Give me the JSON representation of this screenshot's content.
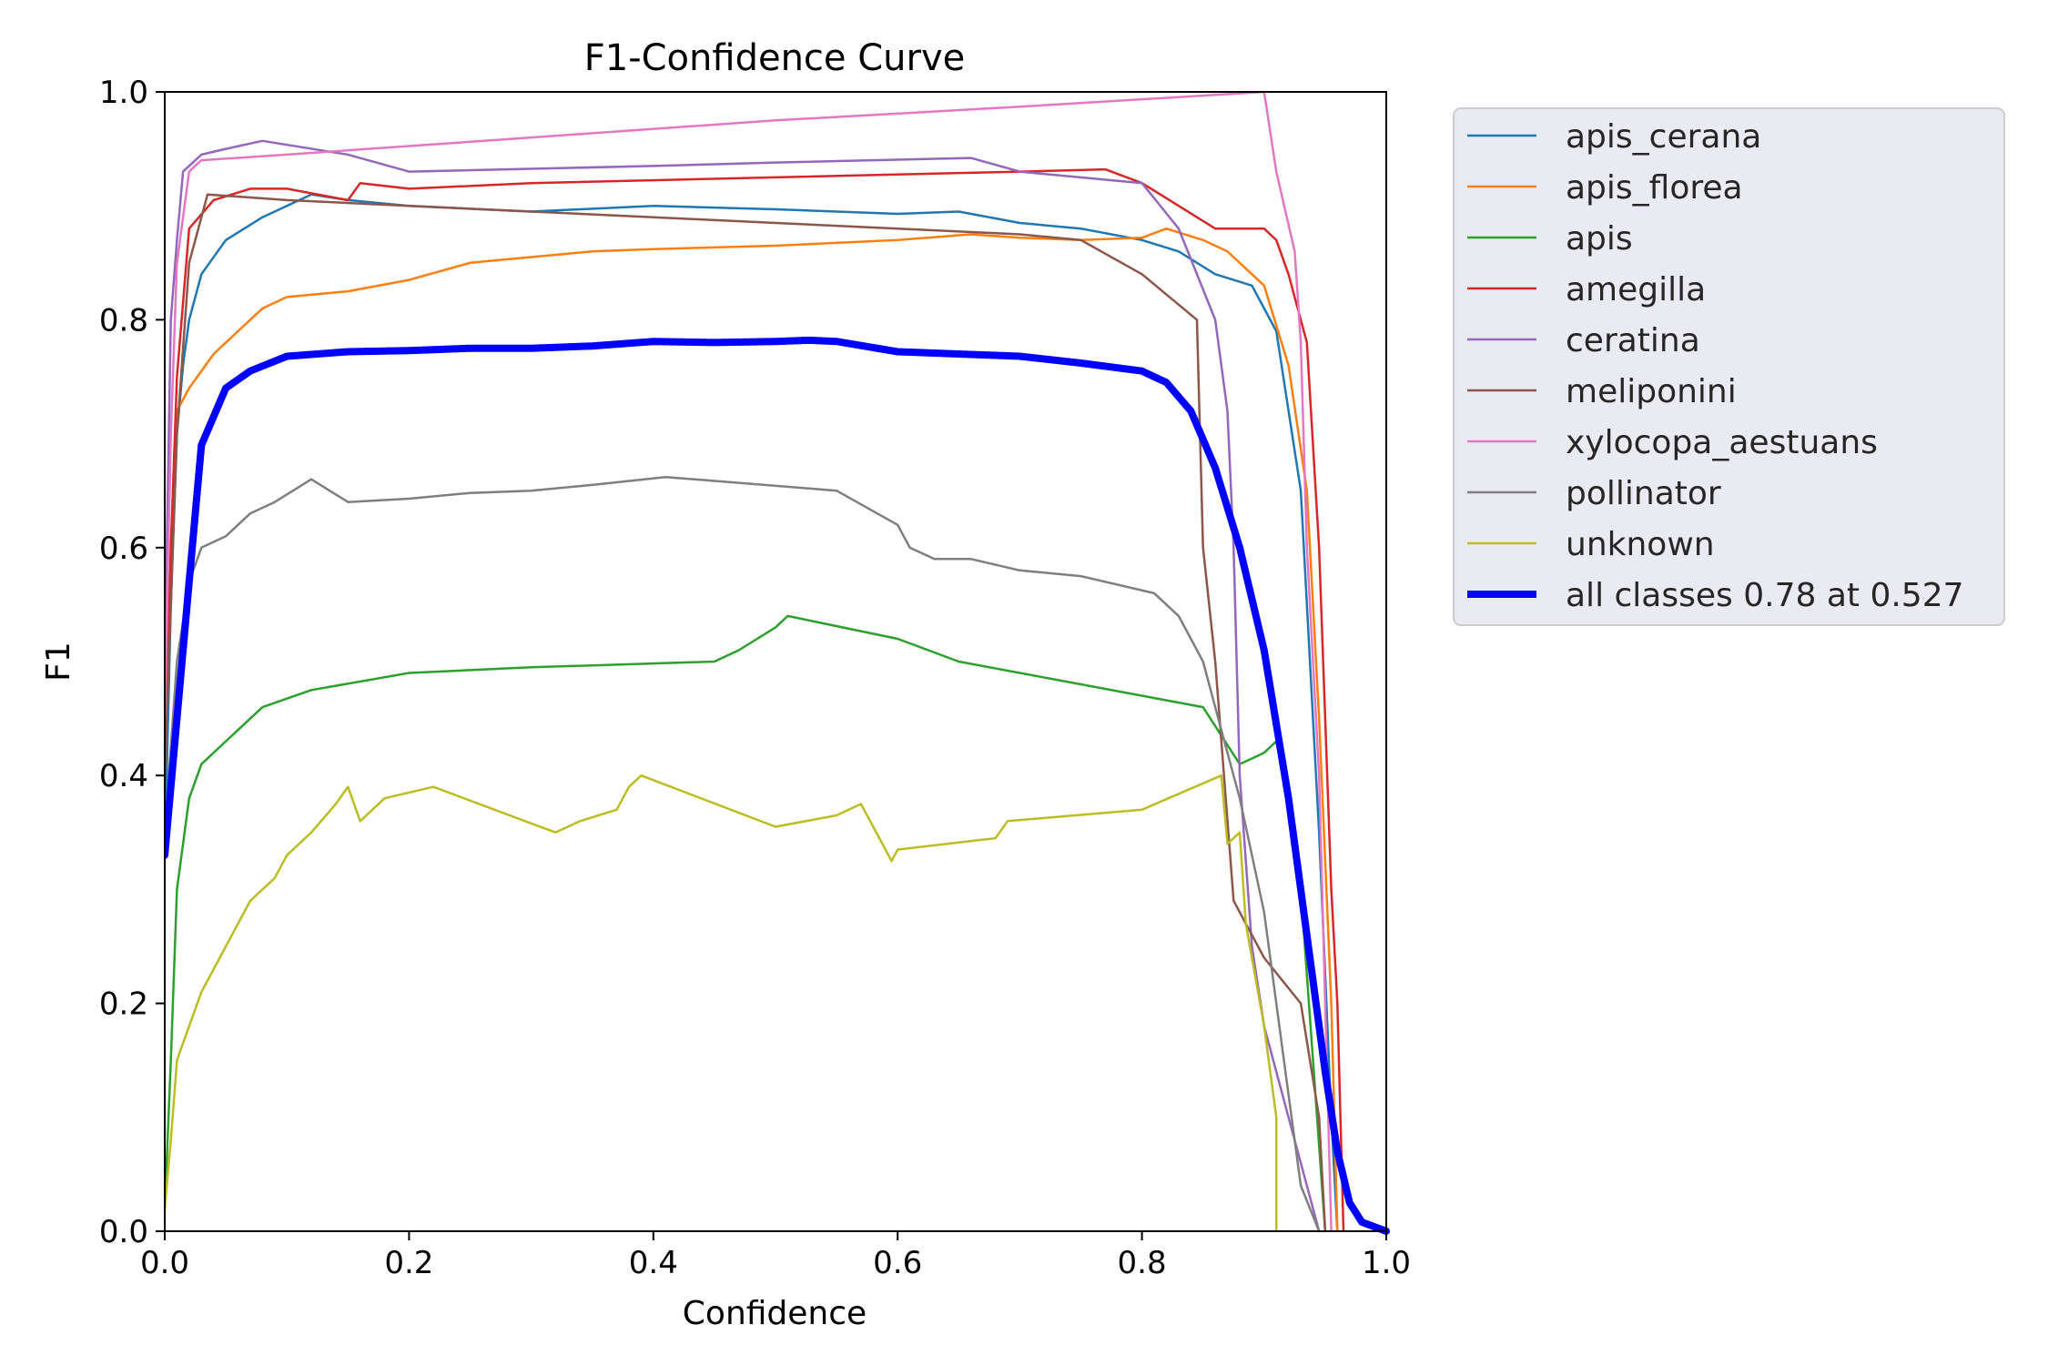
{
  "chart_data": {
    "type": "line",
    "title": "F1-Confidence Curve",
    "xlabel": "Confidence",
    "ylabel": "F1",
    "xlim": [
      0,
      1
    ],
    "ylim": [
      0,
      1
    ],
    "xticks": [
      "0.0",
      "0.2",
      "0.4",
      "0.6",
      "0.8",
      "1.0"
    ],
    "yticks": [
      "0.0",
      "0.2",
      "0.4",
      "0.6",
      "0.8",
      "1.0"
    ],
    "grid": false,
    "legend": "outside-upper-right",
    "series": [
      {
        "name": "apis_cerana",
        "color": "#1f77b4",
        "width": 2.5,
        "points": [
          [
            0,
            0.33
          ],
          [
            0.005,
            0.55
          ],
          [
            0.01,
            0.7
          ],
          [
            0.015,
            0.76
          ],
          [
            0.02,
            0.8
          ],
          [
            0.03,
            0.84
          ],
          [
            0.05,
            0.87
          ],
          [
            0.08,
            0.89
          ],
          [
            0.1,
            0.9
          ],
          [
            0.12,
            0.91
          ],
          [
            0.15,
            0.905
          ],
          [
            0.2,
            0.9
          ],
          [
            0.3,
            0.895
          ],
          [
            0.4,
            0.9
          ],
          [
            0.5,
            0.897
          ],
          [
            0.6,
            0.893
          ],
          [
            0.65,
            0.895
          ],
          [
            0.7,
            0.885
          ],
          [
            0.75,
            0.88
          ],
          [
            0.8,
            0.87
          ],
          [
            0.83,
            0.86
          ],
          [
            0.86,
            0.84
          ],
          [
            0.89,
            0.83
          ],
          [
            0.91,
            0.79
          ],
          [
            0.93,
            0.65
          ],
          [
            0.945,
            0.35
          ],
          [
            0.955,
            0.1
          ],
          [
            0.96,
            0.0
          ]
        ]
      },
      {
        "name": "apis_florea",
        "color": "#ff7f0e",
        "width": 2.5,
        "points": [
          [
            0,
            0.4
          ],
          [
            0.005,
            0.6
          ],
          [
            0.01,
            0.72
          ],
          [
            0.02,
            0.74
          ],
          [
            0.04,
            0.77
          ],
          [
            0.06,
            0.79
          ],
          [
            0.08,
            0.81
          ],
          [
            0.1,
            0.82
          ],
          [
            0.15,
            0.825
          ],
          [
            0.2,
            0.835
          ],
          [
            0.25,
            0.85
          ],
          [
            0.3,
            0.855
          ],
          [
            0.35,
            0.86
          ],
          [
            0.4,
            0.862
          ],
          [
            0.5,
            0.865
          ],
          [
            0.6,
            0.87
          ],
          [
            0.66,
            0.875
          ],
          [
            0.7,
            0.872
          ],
          [
            0.75,
            0.87
          ],
          [
            0.8,
            0.872
          ],
          [
            0.82,
            0.88
          ],
          [
            0.85,
            0.87
          ],
          [
            0.87,
            0.86
          ],
          [
            0.9,
            0.83
          ],
          [
            0.92,
            0.76
          ],
          [
            0.935,
            0.65
          ],
          [
            0.945,
            0.45
          ],
          [
            0.955,
            0.2
          ],
          [
            0.96,
            0.0
          ]
        ]
      },
      {
        "name": "apis",
        "color": "#2ca02c",
        "width": 2.5,
        "points": [
          [
            0,
            0.02
          ],
          [
            0.005,
            0.15
          ],
          [
            0.01,
            0.3
          ],
          [
            0.02,
            0.38
          ],
          [
            0.03,
            0.41
          ],
          [
            0.05,
            0.43
          ],
          [
            0.08,
            0.46
          ],
          [
            0.12,
            0.475
          ],
          [
            0.2,
            0.49
          ],
          [
            0.3,
            0.495
          ],
          [
            0.45,
            0.5
          ],
          [
            0.47,
            0.51
          ],
          [
            0.5,
            0.53
          ],
          [
            0.51,
            0.54
          ],
          [
            0.6,
            0.52
          ],
          [
            0.65,
            0.5
          ],
          [
            0.75,
            0.48
          ],
          [
            0.85,
            0.46
          ],
          [
            0.88,
            0.41
          ],
          [
            0.9,
            0.42
          ],
          [
            0.91,
            0.43
          ],
          [
            0.92,
            0.38
          ],
          [
            0.93,
            0.3
          ],
          [
            0.94,
            0.15
          ],
          [
            0.95,
            0.0
          ]
        ]
      },
      {
        "name": "amegilla",
        "color": "#d62728",
        "width": 2.5,
        "points": [
          [
            0,
            0.4
          ],
          [
            0.005,
            0.6
          ],
          [
            0.01,
            0.75
          ],
          [
            0.02,
            0.88
          ],
          [
            0.04,
            0.905
          ],
          [
            0.07,
            0.915
          ],
          [
            0.1,
            0.915
          ],
          [
            0.15,
            0.905
          ],
          [
            0.16,
            0.92
          ],
          [
            0.2,
            0.915
          ],
          [
            0.3,
            0.92
          ],
          [
            0.5,
            0.925
          ],
          [
            0.7,
            0.93
          ],
          [
            0.77,
            0.932
          ],
          [
            0.8,
            0.92
          ],
          [
            0.83,
            0.9
          ],
          [
            0.86,
            0.88
          ],
          [
            0.9,
            0.88
          ],
          [
            0.91,
            0.87
          ],
          [
            0.92,
            0.84
          ],
          [
            0.935,
            0.78
          ],
          [
            0.945,
            0.6
          ],
          [
            0.955,
            0.3
          ],
          [
            0.96,
            0.2
          ],
          [
            0.965,
            0.0
          ]
        ]
      },
      {
        "name": "ceratina",
        "color": "#9467bd",
        "width": 2.5,
        "points": [
          [
            0,
            0.5
          ],
          [
            0.005,
            0.8
          ],
          [
            0.01,
            0.87
          ],
          [
            0.015,
            0.93
          ],
          [
            0.03,
            0.945
          ],
          [
            0.05,
            0.95
          ],
          [
            0.08,
            0.957
          ],
          [
            0.15,
            0.945
          ],
          [
            0.2,
            0.93
          ],
          [
            0.4,
            0.935
          ],
          [
            0.5,
            0.938
          ],
          [
            0.66,
            0.942
          ],
          [
            0.7,
            0.93
          ],
          [
            0.8,
            0.92
          ],
          [
            0.83,
            0.88
          ],
          [
            0.86,
            0.8
          ],
          [
            0.87,
            0.72
          ],
          [
            0.875,
            0.6
          ],
          [
            0.88,
            0.4
          ],
          [
            0.89,
            0.25
          ],
          [
            0.9,
            0.18
          ],
          [
            0.92,
            0.1
          ],
          [
            0.935,
            0.04
          ],
          [
            0.945,
            0.0
          ]
        ]
      },
      {
        "name": "meliponini",
        "color": "#8c564b",
        "width": 2.5,
        "points": [
          [
            0,
            0.4
          ],
          [
            0.01,
            0.7
          ],
          [
            0.02,
            0.85
          ],
          [
            0.035,
            0.91
          ],
          [
            0.1,
            0.905
          ],
          [
            0.2,
            0.9
          ],
          [
            0.3,
            0.895
          ],
          [
            0.4,
            0.89
          ],
          [
            0.5,
            0.885
          ],
          [
            0.6,
            0.88
          ],
          [
            0.7,
            0.875
          ],
          [
            0.75,
            0.87
          ],
          [
            0.8,
            0.84
          ],
          [
            0.845,
            0.8
          ],
          [
            0.85,
            0.6
          ],
          [
            0.86,
            0.5
          ],
          [
            0.875,
            0.29
          ],
          [
            0.9,
            0.24
          ],
          [
            0.93,
            0.2
          ],
          [
            0.945,
            0.1
          ],
          [
            0.95,
            0.0
          ]
        ]
      },
      {
        "name": "xylocopa_aestuans",
        "color": "#e377c2",
        "width": 2.5,
        "points": [
          [
            0,
            0.45
          ],
          [
            0.005,
            0.7
          ],
          [
            0.01,
            0.85
          ],
          [
            0.02,
            0.93
          ],
          [
            0.03,
            0.94
          ],
          [
            0.1,
            0.945
          ],
          [
            0.3,
            0.96
          ],
          [
            0.5,
            0.975
          ],
          [
            0.7,
            0.987
          ],
          [
            0.9,
            1.0
          ],
          [
            0.91,
            0.93
          ],
          [
            0.925,
            0.86
          ],
          [
            0.93,
            0.78
          ],
          [
            0.935,
            0.6
          ],
          [
            0.945,
            0.4
          ],
          [
            0.955,
            0.0
          ]
        ]
      },
      {
        "name": "pollinator",
        "color": "#7f7f7f",
        "width": 2.5,
        "points": [
          [
            0,
            0.35
          ],
          [
            0.01,
            0.5
          ],
          [
            0.02,
            0.57
          ],
          [
            0.03,
            0.6
          ],
          [
            0.05,
            0.61
          ],
          [
            0.07,
            0.63
          ],
          [
            0.09,
            0.64
          ],
          [
            0.12,
            0.66
          ],
          [
            0.15,
            0.64
          ],
          [
            0.2,
            0.643
          ],
          [
            0.25,
            0.648
          ],
          [
            0.3,
            0.65
          ],
          [
            0.35,
            0.655
          ],
          [
            0.41,
            0.662
          ],
          [
            0.55,
            0.65
          ],
          [
            0.6,
            0.62
          ],
          [
            0.61,
            0.6
          ],
          [
            0.63,
            0.59
          ],
          [
            0.66,
            0.59
          ],
          [
            0.7,
            0.58
          ],
          [
            0.75,
            0.575
          ],
          [
            0.81,
            0.56
          ],
          [
            0.83,
            0.54
          ],
          [
            0.85,
            0.5
          ],
          [
            0.86,
            0.46
          ],
          [
            0.87,
            0.42
          ],
          [
            0.88,
            0.38
          ],
          [
            0.9,
            0.28
          ],
          [
            0.91,
            0.2
          ],
          [
            0.92,
            0.12
          ],
          [
            0.93,
            0.04
          ],
          [
            0.945,
            0.0
          ]
        ]
      },
      {
        "name": "unknown",
        "color": "#bcbd22",
        "width": 2.5,
        "points": [
          [
            0,
            0.02
          ],
          [
            0.005,
            0.08
          ],
          [
            0.01,
            0.15
          ],
          [
            0.02,
            0.18
          ],
          [
            0.03,
            0.21
          ],
          [
            0.05,
            0.25
          ],
          [
            0.07,
            0.29
          ],
          [
            0.09,
            0.31
          ],
          [
            0.1,
            0.33
          ],
          [
            0.12,
            0.35
          ],
          [
            0.14,
            0.375
          ],
          [
            0.15,
            0.39
          ],
          [
            0.16,
            0.36
          ],
          [
            0.18,
            0.38
          ],
          [
            0.22,
            0.39
          ],
          [
            0.27,
            0.37
          ],
          [
            0.32,
            0.35
          ],
          [
            0.34,
            0.36
          ],
          [
            0.37,
            0.37
          ],
          [
            0.38,
            0.39
          ],
          [
            0.39,
            0.4
          ],
          [
            0.5,
            0.355
          ],
          [
            0.55,
            0.365
          ],
          [
            0.57,
            0.375
          ],
          [
            0.595,
            0.325
          ],
          [
            0.6,
            0.335
          ],
          [
            0.68,
            0.345
          ],
          [
            0.69,
            0.36
          ],
          [
            0.8,
            0.37
          ],
          [
            0.865,
            0.4
          ],
          [
            0.87,
            0.34
          ],
          [
            0.88,
            0.35
          ],
          [
            0.885,
            0.27
          ],
          [
            0.9,
            0.18
          ],
          [
            0.91,
            0.1
          ],
          [
            0.91,
            0.0
          ]
        ]
      },
      {
        "name": "all classes 0.78 at 0.527",
        "color": "#0000ff",
        "width": 8,
        "points": [
          [
            0,
            0.33
          ],
          [
            0.01,
            0.45
          ],
          [
            0.02,
            0.57
          ],
          [
            0.03,
            0.69
          ],
          [
            0.05,
            0.74
          ],
          [
            0.07,
            0.755
          ],
          [
            0.1,
            0.768
          ],
          [
            0.15,
            0.772
          ],
          [
            0.2,
            0.773
          ],
          [
            0.25,
            0.775
          ],
          [
            0.3,
            0.775
          ],
          [
            0.35,
            0.777
          ],
          [
            0.4,
            0.781
          ],
          [
            0.45,
            0.78
          ],
          [
            0.5,
            0.781
          ],
          [
            0.527,
            0.782
          ],
          [
            0.55,
            0.781
          ],
          [
            0.6,
            0.772
          ],
          [
            0.65,
            0.77
          ],
          [
            0.7,
            0.768
          ],
          [
            0.75,
            0.762
          ],
          [
            0.8,
            0.755
          ],
          [
            0.82,
            0.745
          ],
          [
            0.84,
            0.72
          ],
          [
            0.86,
            0.67
          ],
          [
            0.88,
            0.6
          ],
          [
            0.9,
            0.51
          ],
          [
            0.92,
            0.38
          ],
          [
            0.94,
            0.22
          ],
          [
            0.95,
            0.14
          ],
          [
            0.96,
            0.07
          ],
          [
            0.97,
            0.025
          ],
          [
            0.98,
            0.008
          ],
          [
            1.0,
            0.0
          ]
        ]
      }
    ]
  }
}
